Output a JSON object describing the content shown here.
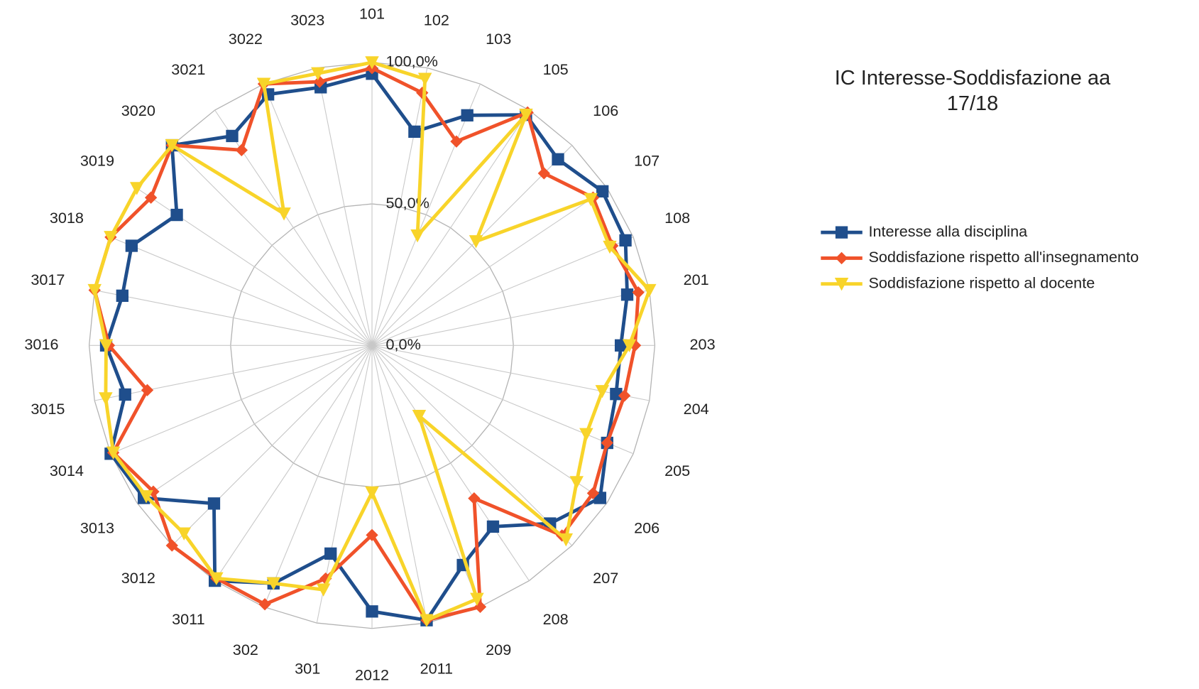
{
  "chart_data": {
    "type": "radar",
    "title": "IC Interesse-Soddisfazione aa 17/18",
    "categories": [
      "101",
      "102",
      "103",
      "105",
      "106",
      "107",
      "108",
      "201",
      "203",
      "204",
      "205",
      "206",
      "207",
      "208",
      "209",
      "2011",
      "2012",
      "301",
      "302",
      "3011",
      "3012",
      "3013",
      "3014",
      "3015",
      "3016",
      "3017",
      "3018",
      "3019",
      "3020",
      "3021",
      "3022",
      "3023"
    ],
    "ylim": [
      0,
      100
    ],
    "yticks": [
      {
        "value": 0,
        "label": "0,0%"
      },
      {
        "value": 50,
        "label": "50,0%"
      },
      {
        "value": 100,
        "label": "100,0%"
      }
    ],
    "grid": true,
    "legend": "right",
    "series": [
      {
        "name": "Interesse alla disciplina",
        "color": "#1f4e8c",
        "marker": "square",
        "values": [
          96,
          77,
          88,
          98,
          93,
          98,
          97,
          92,
          88,
          88,
          90,
          97,
          89,
          77,
          84,
          99,
          94,
          75,
          91,
          100,
          79,
          97,
          100,
          89,
          94,
          90,
          92,
          83,
          100,
          89,
          96,
          93
        ]
      },
      {
        "name": "Soddisfazione rispetto all'insegnamento",
        "color": "#f0522a",
        "marker": "diamond",
        "values": [
          98,
          91,
          78,
          99,
          86,
          94,
          92,
          96,
          93,
          91,
          90,
          94,
          95,
          65,
          100,
          99,
          67,
          84,
          99,
          99,
          100,
          93,
          99,
          81,
          93,
          100,
          100,
          94,
          100,
          83,
          100,
          95
        ]
      },
      {
        "name": "Soddisfazione rispetto al docente",
        "color": "#f8d42a",
        "marker": "triangle-down",
        "values": [
          100,
          96,
          42,
          98,
          52,
          93,
          91,
          100,
          91,
          83,
          82,
          87,
          97,
          30,
          97,
          99,
          52,
          88,
          91,
          99,
          94,
          96,
          99,
          96,
          94,
          100,
          100,
          100,
          100,
          56,
          100,
          98
        ]
      }
    ]
  }
}
